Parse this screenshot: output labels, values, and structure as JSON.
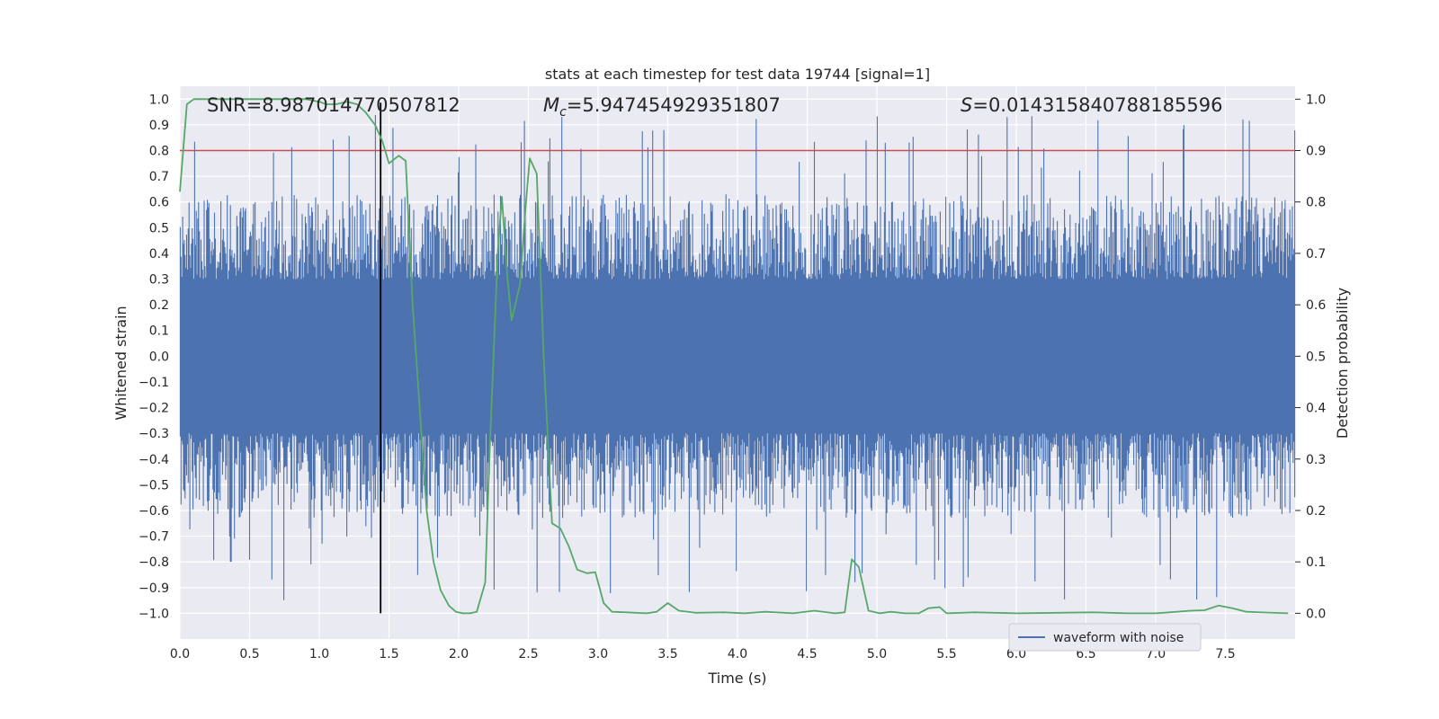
{
  "chart_data": {
    "type": "line",
    "title": "stats at each timestep for test data 19744 [signal=1]",
    "xlabel": "Time (s)",
    "ylabel_left": "Whitened strain",
    "ylabel_right": "Detection probability",
    "xlim": [
      0.0,
      8.0
    ],
    "ylim_left": [
      -1.1,
      1.05
    ],
    "ylim_right": [
      -0.05,
      1.025
    ],
    "x_ticks": [
      "0.0",
      "0.5",
      "1.0",
      "1.5",
      "2.0",
      "2.5",
      "3.0",
      "3.5",
      "4.0",
      "4.5",
      "5.0",
      "5.5",
      "6.0",
      "6.5",
      "7.0",
      "7.5"
    ],
    "y_ticks_left": [
      "1.0",
      "0.9",
      "0.8",
      "0.7",
      "0.6",
      "0.5",
      "0.4",
      "0.3",
      "0.2",
      "0.1",
      "0.0",
      "-0.1",
      "-0.2",
      "-0.3",
      "-0.4",
      "-0.5",
      "-0.6",
      "-0.7",
      "-0.8",
      "-0.9",
      "-1.0"
    ],
    "y_ticks_right": [
      "1.0",
      "0.9",
      "0.8",
      "0.7",
      "0.6",
      "0.5",
      "0.4",
      "0.3",
      "0.2",
      "0.1",
      "0.0"
    ],
    "annotations": {
      "snr": "SNR=8.987014770507812",
      "mc_symbol": "M",
      "mc_sub": "c",
      "mc_value": "=5.947454929351807",
      "s_symbol": "S",
      "s_value": "=0.014315840788185596"
    },
    "legend": {
      "label": "waveform with noise",
      "placement": "lower-right"
    },
    "threshold": {
      "value": 0.9,
      "axis": "right",
      "color": "#c44e52"
    },
    "marker_time": 1.44,
    "series": [
      {
        "name": "waveform with noise",
        "axis": "left",
        "color": "#4c72b0",
        "description": "dense whitened strain noise, typical envelope about ±0.55 with spikes to ±0.95"
      },
      {
        "name": "detection probability",
        "axis": "right",
        "color": "#55a868",
        "points": [
          [
            0.0,
            0.82
          ],
          [
            0.05,
            0.99
          ],
          [
            0.1,
            1.0
          ],
          [
            0.3,
            1.0
          ],
          [
            0.5,
            1.0
          ],
          [
            0.7,
            1.0
          ],
          [
            0.9,
            1.0
          ],
          [
            1.0,
            0.995
          ],
          [
            1.05,
            0.99
          ],
          [
            1.12,
            0.99
          ],
          [
            1.2,
            0.995
          ],
          [
            1.27,
            0.99
          ],
          [
            1.33,
            0.975
          ],
          [
            1.4,
            0.95
          ],
          [
            1.45,
            0.92
          ],
          [
            1.5,
            0.875
          ],
          [
            1.57,
            0.89
          ],
          [
            1.62,
            0.88
          ],
          [
            1.67,
            0.6
          ],
          [
            1.72,
            0.4
          ],
          [
            1.77,
            0.2
          ],
          [
            1.82,
            0.1
          ],
          [
            1.87,
            0.045
          ],
          [
            1.93,
            0.015
          ],
          [
            1.98,
            0.003
          ],
          [
            2.03,
            0.0
          ],
          [
            2.08,
            0.0
          ],
          [
            2.13,
            0.003
          ],
          [
            2.19,
            0.06
          ],
          [
            2.22,
            0.3
          ],
          [
            2.28,
            0.7
          ],
          [
            2.31,
            0.81
          ],
          [
            2.35,
            0.65
          ],
          [
            2.38,
            0.57
          ],
          [
            2.44,
            0.64
          ],
          [
            2.48,
            0.79
          ],
          [
            2.51,
            0.885
          ],
          [
            2.56,
            0.855
          ],
          [
            2.61,
            0.5
          ],
          [
            2.67,
            0.175
          ],
          [
            2.73,
            0.165
          ],
          [
            2.79,
            0.13
          ],
          [
            2.85,
            0.085
          ],
          [
            2.92,
            0.078
          ],
          [
            2.98,
            0.08
          ],
          [
            3.04,
            0.02
          ],
          [
            3.1,
            0.003
          ],
          [
            3.2,
            0.002
          ],
          [
            3.35,
            0.0
          ],
          [
            3.42,
            0.003
          ],
          [
            3.5,
            0.02
          ],
          [
            3.58,
            0.005
          ],
          [
            3.7,
            0.001
          ],
          [
            3.9,
            0.002
          ],
          [
            4.05,
            0.0
          ],
          [
            4.2,
            0.003
          ],
          [
            4.4,
            0.0
          ],
          [
            4.55,
            0.005
          ],
          [
            4.7,
            0.0
          ],
          [
            4.77,
            0.002
          ],
          [
            4.82,
            0.105
          ],
          [
            4.87,
            0.09
          ],
          [
            4.94,
            0.005
          ],
          [
            5.02,
            0.0
          ],
          [
            5.1,
            0.003
          ],
          [
            5.2,
            0.0
          ],
          [
            5.3,
            0.0
          ],
          [
            5.37,
            0.01
          ],
          [
            5.45,
            0.012
          ],
          [
            5.5,
            0.0
          ],
          [
            5.7,
            0.002
          ],
          [
            6.0,
            0.0
          ],
          [
            6.3,
            0.001
          ],
          [
            6.55,
            0.002
          ],
          [
            6.8,
            0.0
          ],
          [
            7.0,
            0.0
          ],
          [
            7.1,
            0.002
          ],
          [
            7.25,
            0.005
          ],
          [
            7.35,
            0.006
          ],
          [
            7.45,
            0.015
          ],
          [
            7.55,
            0.01
          ],
          [
            7.65,
            0.003
          ],
          [
            7.95,
            0.0
          ]
        ]
      }
    ]
  }
}
